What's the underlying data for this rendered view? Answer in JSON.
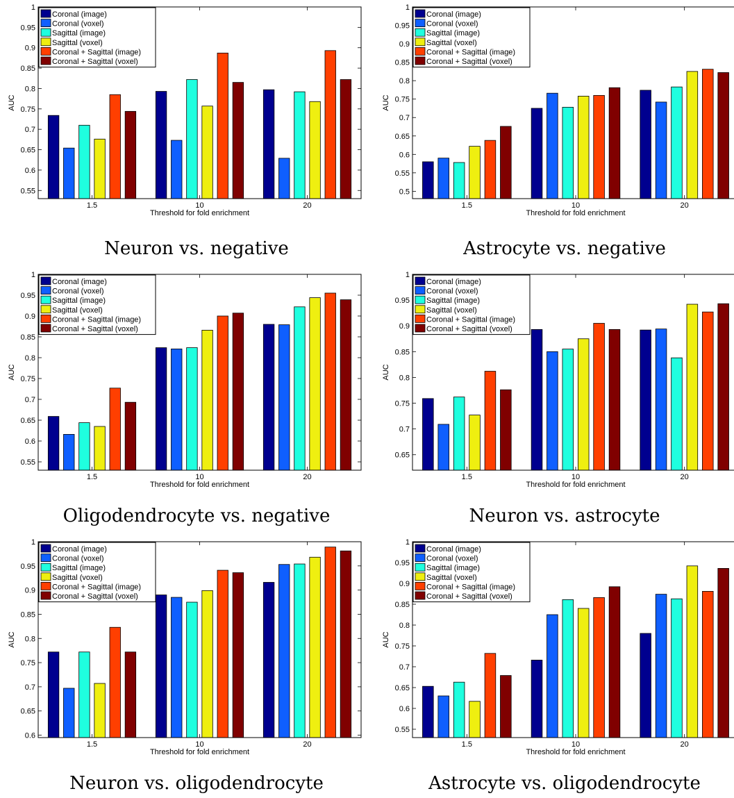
{
  "captions": [
    "Neuron vs. negative",
    "Astrocyte vs. negative",
    "Oligodendrocyte vs. negative",
    "Neuron vs. astrocyte",
    "Neuron vs. oligodendrocyte",
    "Astrocyte vs. oligodendrocyte"
  ],
  "series_colors": [
    "#00008f",
    "#0f5fff",
    "#1fffdf",
    "#efef10",
    "#ff3f00",
    "#800000"
  ],
  "chart_data": [
    {
      "type": "bar",
      "caption": "Neuron vs. negative",
      "xlabel": "Threshold for fold enrichment",
      "ylabel": "AUC",
      "categories": [
        "1.5",
        "10",
        "20"
      ],
      "ylim": [
        0.53,
        1.0
      ],
      "yticks": [
        0.55,
        0.6,
        0.65,
        0.7,
        0.75,
        0.8,
        0.85,
        0.9,
        0.95,
        1
      ],
      "ytick_labels": [
        "0.55",
        "0.6",
        "0.65",
        "0.7",
        "0.75",
        "0.8",
        "0.85",
        "0.9",
        "0.95",
        "1"
      ],
      "grid": false,
      "legend_position": "top-left",
      "series": [
        {
          "name": "Coronal (image)",
          "values": [
            0.734,
            0.793,
            0.797
          ]
        },
        {
          "name": "Coronal (voxel)",
          "values": [
            0.654,
            0.673,
            0.629
          ]
        },
        {
          "name": "Sagittal (image)",
          "values": [
            0.71,
            0.822,
            0.792
          ]
        },
        {
          "name": "Sagittal (voxel)",
          "values": [
            0.676,
            0.757,
            0.768
          ]
        },
        {
          "name": "Coronal + Sagittal (image)",
          "values": [
            0.785,
            0.887,
            0.893
          ]
        },
        {
          "name": "Coronal + Sagittal (voxel)",
          "values": [
            0.744,
            0.815,
            0.822
          ]
        }
      ]
    },
    {
      "type": "bar",
      "caption": "Astrocyte vs. negative",
      "xlabel": "Threshold for fold enrichment",
      "ylabel": "AUC",
      "categories": [
        "1.5",
        "10",
        "20"
      ],
      "ylim": [
        0.48,
        1.0
      ],
      "yticks": [
        0.5,
        0.55,
        0.6,
        0.65,
        0.7,
        0.75,
        0.8,
        0.85,
        0.9,
        0.95,
        1
      ],
      "ytick_labels": [
        "0.5",
        "0.55",
        "0.6",
        "0.65",
        "0.7",
        "0.75",
        "0.8",
        "0.85",
        "0.9",
        "0.95",
        "1"
      ],
      "grid": false,
      "legend_position": "top-left",
      "series": [
        {
          "name": "Coronal (image)",
          "values": [
            0.58,
            0.725,
            0.774
          ]
        },
        {
          "name": "Coronal (voxel)",
          "values": [
            0.59,
            0.766,
            0.742
          ]
        },
        {
          "name": "Sagittal (image)",
          "values": [
            0.578,
            0.728,
            0.783
          ]
        },
        {
          "name": "Sagittal (voxel)",
          "values": [
            0.622,
            0.758,
            0.825
          ]
        },
        {
          "name": "Coronal + Sagittal (image)",
          "values": [
            0.638,
            0.76,
            0.831
          ]
        },
        {
          "name": "Coronal + Sagittal (voxel)",
          "values": [
            0.676,
            0.781,
            0.822
          ]
        }
      ]
    },
    {
      "type": "bar",
      "caption": "Oligodendrocyte vs. negative",
      "xlabel": "Threshold for fold enrichment",
      "ylabel": "AUC",
      "categories": [
        "1.5",
        "10",
        "20"
      ],
      "ylim": [
        0.53,
        1.0
      ],
      "yticks": [
        0.55,
        0.6,
        0.65,
        0.7,
        0.75,
        0.8,
        0.85,
        0.9,
        0.95,
        1
      ],
      "ytick_labels": [
        "0.55",
        "0.6",
        "0.65",
        "0.7",
        "0.75",
        "0.8",
        "0.85",
        "0.9",
        "0.95",
        "1"
      ],
      "grid": false,
      "legend_position": "top-left",
      "series": [
        {
          "name": "Coronal (image)",
          "values": [
            0.659,
            0.824,
            0.88
          ]
        },
        {
          "name": "Coronal (voxel)",
          "values": [
            0.616,
            0.821,
            0.879
          ]
        },
        {
          "name": "Sagittal (image)",
          "values": [
            0.644,
            0.824,
            0.922
          ]
        },
        {
          "name": "Sagittal (voxel)",
          "values": [
            0.635,
            0.866,
            0.944
          ]
        },
        {
          "name": "Coronal + Sagittal (image)",
          "values": [
            0.727,
            0.9,
            0.955
          ]
        },
        {
          "name": "Coronal + Sagittal (voxel)",
          "values": [
            0.693,
            0.907,
            0.939
          ]
        }
      ]
    },
    {
      "type": "bar",
      "caption": "Neuron vs. astrocyte",
      "xlabel": "Threshold for fold enrichment",
      "ylabel": "AUC",
      "categories": [
        "1.5",
        "10",
        "20"
      ],
      "ylim": [
        0.62,
        1.0
      ],
      "yticks": [
        0.65,
        0.7,
        0.75,
        0.8,
        0.85,
        0.9,
        0.95,
        1
      ],
      "ytick_labels": [
        "0.65",
        "0.7",
        "0.75",
        "0.8",
        "0.85",
        "0.9",
        "0.95",
        "1"
      ],
      "grid": false,
      "legend_position": "top-left",
      "series": [
        {
          "name": "Coronal (image)",
          "values": [
            0.759,
            0.893,
            0.892
          ]
        },
        {
          "name": "Coronal (voxel)",
          "values": [
            0.709,
            0.85,
            0.894
          ]
        },
        {
          "name": "Sagittal (image)",
          "values": [
            0.762,
            0.855,
            0.838
          ]
        },
        {
          "name": "Sagittal (voxel)",
          "values": [
            0.727,
            0.875,
            0.942
          ]
        },
        {
          "name": "Coronal + Sagittal (image)",
          "values": [
            0.812,
            0.905,
            0.927
          ]
        },
        {
          "name": "Coronal + Sagittal (voxel)",
          "values": [
            0.776,
            0.893,
            0.943
          ]
        }
      ]
    },
    {
      "type": "bar",
      "caption": "Neuron vs. oligodendrocyte",
      "xlabel": "Threshold for fold enrichment",
      "ylabel": "AUC",
      "categories": [
        "1.5",
        "10",
        "20"
      ],
      "ylim": [
        0.595,
        1.0
      ],
      "yticks": [
        0.6,
        0.65,
        0.7,
        0.75,
        0.8,
        0.85,
        0.9,
        0.95,
        1
      ],
      "ytick_labels": [
        "0.6",
        "0.65",
        "0.7",
        "0.75",
        "0.8",
        "0.85",
        "0.9",
        "0.95",
        "1"
      ],
      "grid": false,
      "legend_position": "top-left",
      "series": [
        {
          "name": "Coronal (image)",
          "values": [
            0.772,
            0.89,
            0.916
          ]
        },
        {
          "name": "Coronal (voxel)",
          "values": [
            0.697,
            0.885,
            0.953
          ]
        },
        {
          "name": "Sagittal (image)",
          "values": [
            0.772,
            0.875,
            0.954
          ]
        },
        {
          "name": "Sagittal (voxel)",
          "values": [
            0.707,
            0.899,
            0.968
          ]
        },
        {
          "name": "Coronal + Sagittal (image)",
          "values": [
            0.823,
            0.941,
            0.989
          ]
        },
        {
          "name": "Coronal + Sagittal (voxel)",
          "values": [
            0.772,
            0.936,
            0.981
          ]
        }
      ]
    },
    {
      "type": "bar",
      "caption": "Astrocyte vs. oligodendrocyte",
      "xlabel": "Threshold for fold enrichment",
      "ylabel": "AUC",
      "categories": [
        "1.5",
        "10",
        "20"
      ],
      "ylim": [
        0.53,
        1.0
      ],
      "yticks": [
        0.55,
        0.6,
        0.65,
        0.7,
        0.75,
        0.8,
        0.85,
        0.9,
        0.95,
        1
      ],
      "ytick_labels": [
        "0.55",
        "0.6",
        "0.65",
        "0.7",
        "0.75",
        "0.8",
        "0.85",
        "0.9",
        "0.95",
        "1"
      ],
      "grid": false,
      "legend_position": "top-left",
      "series": [
        {
          "name": "Coronal (image)",
          "values": [
            0.653,
            0.716,
            0.78
          ]
        },
        {
          "name": "Coronal (voxel)",
          "values": [
            0.63,
            0.825,
            0.874
          ]
        },
        {
          "name": "Sagittal (image)",
          "values": [
            0.663,
            0.861,
            0.863
          ]
        },
        {
          "name": "Sagittal (voxel)",
          "values": [
            0.617,
            0.84,
            0.942
          ]
        },
        {
          "name": "Coronal + Sagittal (image)",
          "values": [
            0.732,
            0.866,
            0.881
          ]
        },
        {
          "name": "Coronal + Sagittal (voxel)",
          "values": [
            0.679,
            0.892,
            0.936
          ]
        }
      ]
    }
  ]
}
